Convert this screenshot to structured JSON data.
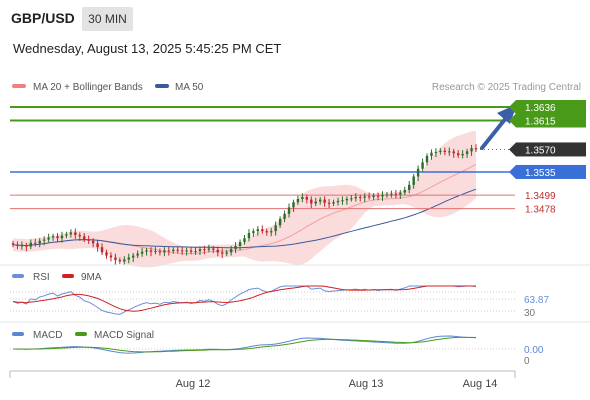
{
  "header": {
    "symbol": "GBP/USD",
    "timeframe": "30 MIN",
    "datetime": "Wednesday, August 13, 2025 5:45:25 PM CET"
  },
  "legend": {
    "ma20": {
      "label": "MA 20 + Bollinger Bands",
      "color": "#f08080"
    },
    "ma50": {
      "label": "MA 50",
      "color": "#3a5a9a"
    },
    "credit": "Research © 2025 Trading Central"
  },
  "colors": {
    "resistance": "#4a9a1a",
    "pivot": "#3a6fd8",
    "support": "#e07070",
    "price_label": "#333333",
    "candle_up": "#2d6e2d",
    "candle_down": "#c0282d",
    "arrow": "#3a5ea8",
    "bollinger_fill": "#fbdcdc",
    "rsi_line": "#6a8fd8",
    "rsi_ma_line": "#d02020",
    "macd_line": "#5a86d6",
    "macd_signal": "#4a9a1a"
  },
  "levels": [
    {
      "value": 1.3636,
      "label": "1.3636",
      "kind": "resistance"
    },
    {
      "value": 1.3615,
      "label": "1.3615",
      "kind": "resistance"
    },
    {
      "value": 1.357,
      "label": "1.3570",
      "kind": "last_price"
    },
    {
      "value": 1.3535,
      "label": "1.3535",
      "kind": "pivot"
    },
    {
      "value": 1.3499,
      "label": "1.3499",
      "kind": "support"
    },
    {
      "value": 1.3478,
      "label": "1.3478",
      "kind": "support"
    }
  ],
  "x_axis": {
    "ticks": [
      "Aug 12",
      "Aug 13",
      "Aug 14"
    ]
  },
  "rsi_panel": {
    "legend": [
      {
        "label": "RSI",
        "color": "#6a8fd8"
      },
      {
        "label": "9MA",
        "color": "#d02020"
      }
    ],
    "value_label": "63.87",
    "lower_label": "30"
  },
  "macd_panel": {
    "legend": [
      {
        "label": "MACD",
        "color": "#5a86d6"
      },
      {
        "label": "MACD Signal",
        "color": "#4a9a1a"
      }
    ],
    "value_label": "0.00",
    "zero_label": "0"
  },
  "chart_data": {
    "type": "candlestick",
    "title": "GBP/USD",
    "timeframe": "30 MIN",
    "x_ticks": [
      "Aug 12",
      "Aug 13",
      "Aug 14"
    ],
    "ylim": [
      1.3395,
      1.365
    ],
    "annotation": "arrow pointing toward 1.3636 resistance",
    "close": [
      1.3422,
      1.342,
      1.3421,
      1.3419,
      1.3425,
      1.3424,
      1.3428,
      1.343,
      1.3433,
      1.3435,
      1.3432,
      1.3436,
      1.3438,
      1.3441,
      1.3437,
      1.3435,
      1.343,
      1.3428,
      1.3424,
      1.3418,
      1.341,
      1.3405,
      1.3402,
      1.3398,
      1.3396,
      1.3399,
      1.3402,
      1.3405,
      1.3408,
      1.3411,
      1.3413,
      1.3411,
      1.3412,
      1.341,
      1.3413,
      1.3412,
      1.3414,
      1.3413,
      1.3412,
      1.3413,
      1.3411,
      1.3412,
      1.3415,
      1.3414,
      1.3416,
      1.3414,
      1.341,
      1.3408,
      1.341,
      1.3415,
      1.342,
      1.3426,
      1.3432,
      1.344,
      1.3443,
      1.3446,
      1.3443,
      1.3441,
      1.3443,
      1.3452,
      1.3462,
      1.347,
      1.348,
      1.3488,
      1.3493,
      1.3496,
      1.3492,
      1.3486,
      1.3489,
      1.3492,
      1.3487,
      1.3486,
      1.3488,
      1.349,
      1.3491,
      1.3493,
      1.3494,
      1.3496,
      1.3495,
      1.3497,
      1.3496,
      1.3498,
      1.3497,
      1.3499,
      1.35,
      1.3501,
      1.35,
      1.3503,
      1.3507,
      1.3515,
      1.3528,
      1.354,
      1.355,
      1.356,
      1.3565,
      1.3566,
      1.3568,
      1.3566,
      1.3567,
      1.3564,
      1.3561,
      1.3563,
      1.3567,
      1.3572,
      1.357
    ]
  }
}
